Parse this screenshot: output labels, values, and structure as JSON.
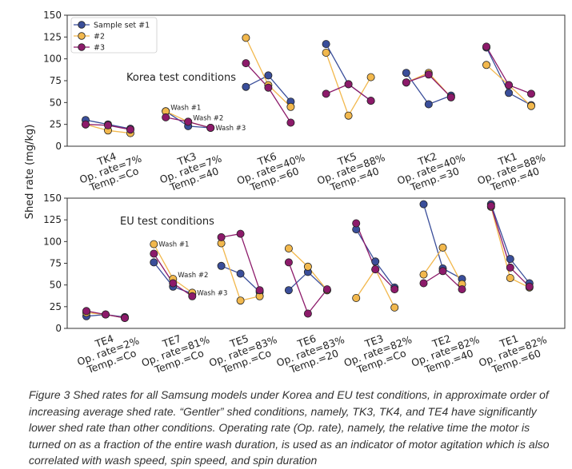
{
  "figure": {
    "ylabel": "Shed rate (mg/kg)",
    "caption_label": "Figure 3",
    "caption_text": " Shed rates for all Samsung models under Korea and EU test conditions, in approximate order of increasing average shed rate. “Gentler” shed conditions, namely, TK3, TK4, and TE4 have significantly lower shed rate than other conditions. Operating rate (Op. rate), namely, the relative time the motor is turned on as a fraction of the entire wash duration, is used as an indicator of motor agitation which is also correlated with wash speed, spin speed, and spin duration"
  },
  "colors": {
    "sample1": "#3a4e9a",
    "sample2": "#f2b84d",
    "sample3": "#8c1a6a"
  },
  "chart_data": [
    {
      "type": "line",
      "title": "Korea test conditions",
      "ylim": [
        0,
        150
      ],
      "yticks": [
        0,
        25,
        50,
        75,
        100,
        125,
        150
      ],
      "grid": false,
      "legend_position": "top-left",
      "series": [
        {
          "name": "Sample set #1",
          "color": "#3a4e9a"
        },
        {
          "name": "#2",
          "color": "#f2b84d"
        },
        {
          "name": "#3",
          "color": "#8c1a6a"
        }
      ],
      "groups": [
        {
          "label": [
            "TK4",
            "Op. rate=7%",
            "Temp.=Co"
          ],
          "values": [
            [
              30,
              25,
              20
            ],
            [
              25,
              18,
              15
            ],
            [
              25,
              24,
              19
            ]
          ]
        },
        {
          "label": [
            "TK3",
            "Op. rate=7%",
            "Temp.=40"
          ],
          "values": [
            [
              40,
              23,
              21
            ],
            [
              40,
              28,
              21
            ],
            [
              33,
              28,
              21
            ]
          ]
        },
        {
          "label": [
            "TK6",
            "Op. rate=40%",
            "Temp.=60"
          ],
          "values": [
            [
              68,
              81,
              51
            ],
            [
              124,
              70,
              45
            ],
            [
              95,
              67,
              27
            ]
          ]
        },
        {
          "label": [
            "TK5",
            "Op. rate=88%",
            "Temp.=40"
          ],
          "values": [
            [
              117,
              71,
              52
            ],
            [
              107,
              35,
              79
            ],
            [
              60,
              71,
              52
            ]
          ]
        },
        {
          "label": [
            "TK2",
            "Op. rate=40%",
            "Temp.=30"
          ],
          "values": [
            [
              84,
              48,
              58
            ],
            [
              73,
              84,
              56
            ],
            [
              73,
              82,
              56
            ]
          ]
        },
        {
          "label": [
            "TK1",
            "Op. rate=88%",
            "Temp.=40"
          ],
          "values": [
            [
              113,
              61,
              47
            ],
            [
              93,
              70,
              46
            ],
            [
              114,
              70,
              60
            ]
          ]
        }
      ],
      "annotations": [
        "Wash #1",
        "Wash #2",
        "Wash #3"
      ]
    },
    {
      "type": "line",
      "title": "EU test conditions",
      "ylim": [
        0,
        150
      ],
      "yticks": [
        0,
        25,
        50,
        75,
        100,
        125,
        150
      ],
      "grid": false,
      "groups": [
        {
          "label": [
            "TE4",
            "Op. rate=2%",
            "Temp.=Co"
          ],
          "values": [
            [
              14,
              16,
              13
            ],
            [
              18,
              16,
              12
            ],
            [
              20,
              16,
              12
            ]
          ]
        },
        {
          "label": [
            "TE7",
            "Op. rate=81%",
            "Temp.=Co"
          ],
          "values": [
            [
              76,
              48,
              40
            ],
            [
              97,
              57,
              41
            ],
            [
              86,
              52,
              37
            ]
          ]
        },
        {
          "label": [
            "TE5",
            "Op. rate=83%",
            "Temp.=Co"
          ],
          "values": [
            [
              72,
              63,
              42
            ],
            [
              98,
              32,
              37
            ],
            [
              105,
              109,
              44
            ]
          ]
        },
        {
          "label": [
            "TE6",
            "Op. rate=83%",
            "Temp.=20"
          ],
          "values": [
            [
              44,
              65,
              44
            ],
            [
              92,
              71,
              44
            ],
            [
              76,
              17,
              45
            ]
          ]
        },
        {
          "label": [
            "TE3",
            "Op. rate=82%",
            "Temp.=Co"
          ],
          "values": [
            [
              114,
              77,
              47
            ],
            [
              35,
              68,
              24
            ],
            [
              121,
              68,
              45
            ]
          ]
        },
        {
          "label": [
            "TE2",
            "Op. rate=82%",
            "Temp.=40"
          ],
          "values": [
            [
              143,
              69,
              57
            ],
            [
              62,
              93,
              51
            ],
            [
              52,
              66,
              45
            ]
          ]
        },
        {
          "label": [
            "TE1",
            "Op. rate=82%",
            "Temp.=60"
          ],
          "values": [
            [
              143,
              80,
              52
            ],
            [
              140,
              58,
              47
            ],
            [
              141,
              70,
              48
            ]
          ]
        }
      ],
      "annotations": [
        "Wash #1",
        "Wash #2",
        "Wash #3"
      ]
    }
  ]
}
